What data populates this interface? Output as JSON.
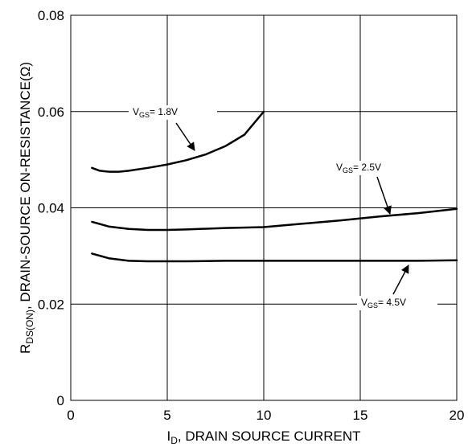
{
  "chart_data": {
    "type": "line",
    "title": "",
    "xlabel": {
      "main": "I",
      "sub": "D",
      "rest": ", DRAIN SOURCE CURRENT"
    },
    "ylabel": {
      "main": "R",
      "sub": "DS(ON)",
      "rest": ", DRAIN-SOURCE ON-RESISTANCE(Ω)"
    },
    "xlim": [
      0,
      20
    ],
    "ylim": [
      0,
      0.08
    ],
    "xticks": [
      "0",
      "5",
      "10",
      "15",
      "20"
    ],
    "yticks": [
      "0",
      "0.02",
      "0.04",
      "0.06",
      "0.08"
    ],
    "grid": true,
    "series": [
      {
        "label": {
          "main": "V",
          "sub": "GS",
          "rest": "= 1.8V"
        },
        "x": [
          1.1,
          1.5,
          2.0,
          2.5,
          3.0,
          4.0,
          5.0,
          6.0,
          7.0,
          8.0,
          9.0,
          10.0
        ],
        "y": [
          0.0483,
          0.0477,
          0.0475,
          0.0475,
          0.0477,
          0.0483,
          0.049,
          0.0499,
          0.0511,
          0.0528,
          0.0552,
          0.06
        ]
      },
      {
        "label": {
          "main": "V",
          "sub": "GS",
          "rest": "= 2.5V"
        },
        "x": [
          1.1,
          2.0,
          3.0,
          4.0,
          5.0,
          6.0,
          8.0,
          10.0,
          12.0,
          14.0,
          16.0,
          18.0,
          20.0
        ],
        "y": [
          0.0371,
          0.0361,
          0.0356,
          0.0354,
          0.0354,
          0.0355,
          0.0358,
          0.036,
          0.0367,
          0.0374,
          0.0382,
          0.0389,
          0.0398
        ]
      },
      {
        "label": {
          "main": "V",
          "sub": "GS",
          "rest": "= 4.5V"
        },
        "x": [
          1.1,
          2.0,
          3.0,
          4.0,
          5.0,
          6.0,
          8.0,
          10.0,
          12.0,
          14.0,
          16.0,
          18.0,
          20.0
        ],
        "y": [
          0.0305,
          0.0295,
          0.029,
          0.0289,
          0.0289,
          0.0289,
          0.029,
          0.029,
          0.029,
          0.029,
          0.029,
          0.029,
          0.0291
        ]
      }
    ]
  }
}
